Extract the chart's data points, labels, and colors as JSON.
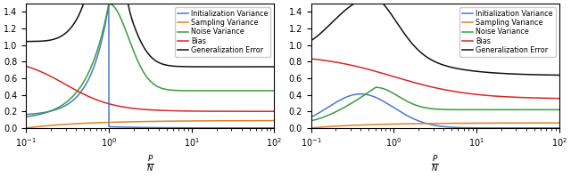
{
  "xlim": [
    0.1,
    100
  ],
  "ylim": [
    0,
    1.5
  ],
  "xlabel": "$\\frac{P}{N}$",
  "colors": {
    "init_var": "#4878cf",
    "samp_var": "#e08020",
    "noise_var": "#3a9c3a",
    "bias": "#d62728",
    "gen_err": "#111111"
  },
  "legend_labels": [
    "Initialization Variance",
    "Sampling Variance",
    "Noise Variance",
    "Bias",
    "Generalization Error"
  ],
  "legend_fontsize": 5.8,
  "tick_fontsize": 7,
  "label_fontsize": 9,
  "yticks": [
    0.0,
    0.2,
    0.4,
    0.6,
    0.8,
    1.0,
    1.2,
    1.4
  ]
}
